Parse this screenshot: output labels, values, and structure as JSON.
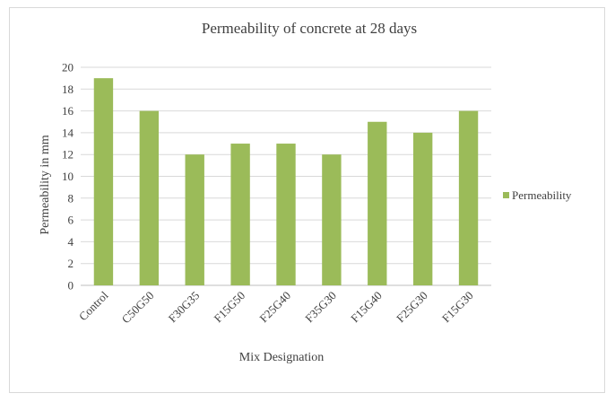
{
  "chart_data": {
    "type": "bar",
    "title": "Permeability  of concrete  at 28 days",
    "xlabel": "Mix Designation",
    "ylabel": "Permeability in mm",
    "categories": [
      "Control",
      "C50G50",
      "F30G35",
      "F15G50",
      "F25G40",
      "F35G30",
      "F15G40",
      "F25G30",
      "F15G30"
    ],
    "series": [
      {
        "name": "Permeability",
        "values": [
          19,
          16,
          12,
          13,
          13,
          12,
          15,
          14,
          16
        ],
        "color": "#9bbb59"
      }
    ],
    "ylim": [
      0,
      20
    ],
    "yticks": [
      0,
      2,
      4,
      6,
      8,
      10,
      12,
      14,
      16,
      18,
      20
    ],
    "grid": true,
    "legend_position": "right"
  }
}
